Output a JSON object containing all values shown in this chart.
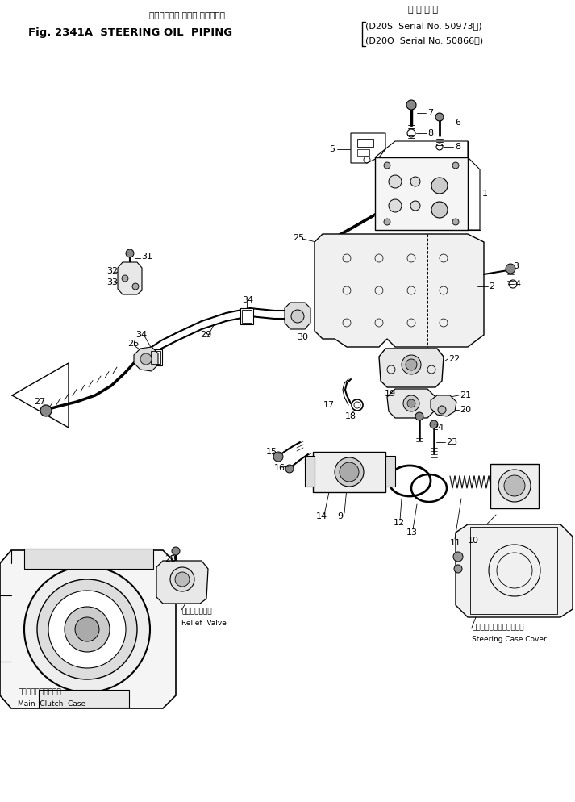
{
  "bg_color": "#ffffff",
  "text_color": "#000000",
  "title_jp": "ステアリング オイル パイピング",
  "title_en": "Fig. 2341A  STEERING OIL  PIPING",
  "serial_hdr": "適 用 号 機",
  "serial1": "(D20S  Serial No. 50973～)",
  "serial2": "(D20Q  Serial No. 50866～)",
  "lbl_relief_jp": "リリーフバルブ",
  "lbl_relief_en": "Relief  Valve",
  "lbl_clutch_jp": "メインクラッチケース",
  "lbl_clutch_en": "Main  Clutch  Case",
  "lbl_cover_jp": "ステアリングケースカバー",
  "lbl_cover_en": "Steering Case Cover"
}
